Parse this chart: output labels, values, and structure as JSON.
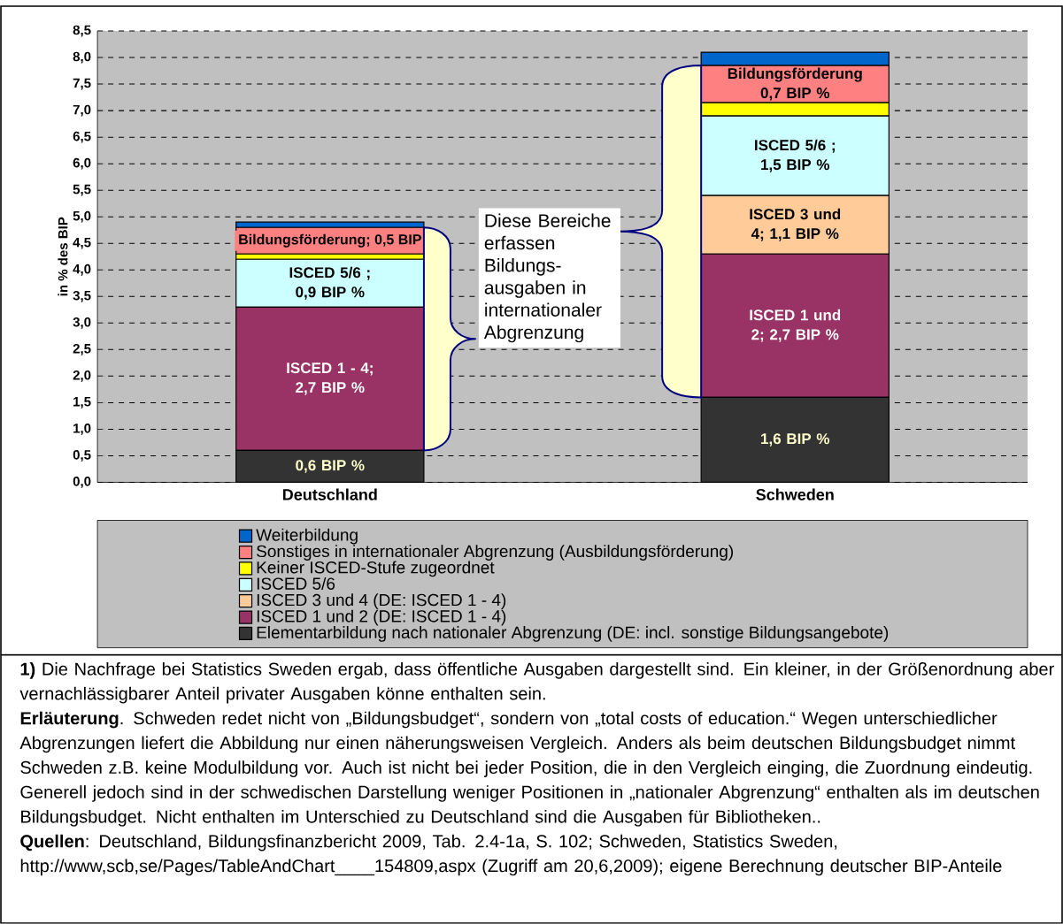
{
  "chart_data": {
    "type": "bar",
    "stacked": true,
    "categories": [
      "Deutschland",
      "Schweden"
    ],
    "ylabel": "in % des BIP",
    "ylim": [
      0,
      8.5
    ],
    "yticks": [
      {
        "value": 0,
        "label": "0,0"
      },
      {
        "value": 0.5,
        "label": "0,5"
      },
      {
        "value": 1,
        "label": "1,0"
      },
      {
        "value": 1.5,
        "label": "1,5"
      },
      {
        "value": 2,
        "label": "2,0"
      },
      {
        "value": 2.5,
        "label": "2,5"
      },
      {
        "value": 3,
        "label": "3,0"
      },
      {
        "value": 3.5,
        "label": "3,5"
      },
      {
        "value": 4,
        "label": "4,0"
      },
      {
        "value": 4.5,
        "label": "4,5"
      },
      {
        "value": 5,
        "label": "5,0"
      },
      {
        "value": 5.5,
        "label": "5,5"
      },
      {
        "value": 6,
        "label": "6,0"
      },
      {
        "value": 6.5,
        "label": "6,5"
      },
      {
        "value": 7,
        "label": "7,0"
      },
      {
        "value": 7.5,
        "label": "7,5"
      },
      {
        "value": 8,
        "label": "8,0"
      },
      {
        "value": 8.5,
        "label": "8,5"
      }
    ],
    "grid": "y",
    "legend": "bottom",
    "series": [
      {
        "name": "Elementarbildung nach nationaler Abgrenzung (DE: incl. sonstige Bildungsangebote)",
        "color": "#333333",
        "values": [
          0.6,
          1.6
        ],
        "value_labels": [
          "0,6 BIP %",
          "1,6 BIP %"
        ]
      },
      {
        "name": "ISCED 1 und 2 (DE: ISCED 1 - 4)",
        "color": "#993366",
        "values": [
          2.7,
          2.7
        ],
        "value_labels": [
          "ISCED 1 - 4; 2,7 BIP %",
          "ISCED 1 und 2; 2,7 BIP %"
        ]
      },
      {
        "name": "ISCED 3 und 4 (DE: ISCED 1 - 4)",
        "color": "#ffcc99",
        "values": [
          0,
          1.1
        ],
        "value_labels": [
          null,
          "ISCED 3 und 4; 1,1 BIP %"
        ]
      },
      {
        "name": "ISCED 5/6",
        "color": "#ccffff",
        "values": [
          0.9,
          1.5
        ],
        "value_labels": [
          "ISCED 5/6 ; 0,9 BIP %",
          "ISCED 5/6 ; 1,5 BIP %"
        ]
      },
      {
        "name": "Keiner ISCED-Stufe zugeordnet",
        "color": "#ffff00",
        "values": [
          0.1,
          0.25
        ],
        "value_labels": [
          null,
          null
        ]
      },
      {
        "name": "Sonstiges in internationaler Abgrenzung (Ausbildungsförderung)",
        "color": "#ff8080",
        "values": [
          0.5,
          0.7
        ],
        "value_labels": [
          "Bildungsförderung; 0,5 BIP",
          "Bildungsförderung 0,7 BIP %"
        ]
      },
      {
        "name": "Weiterbildung",
        "color": "#0066cc",
        "values": [
          0.1,
          0.25
        ],
        "value_labels": [
          null,
          null
        ]
      }
    ],
    "annotations": [
      "Diese Bereiche erfassen Bildungs-ausgaben in internationaler Abgrenzung",
      "**1)** Die Nachfrage bei Statistics Sweden ergab, dass öffentliche Ausgaben dargestellt sind. Ein kleiner, in der Größenordnung aber vernachlässigbarer Anteil privater Ausgaben könne enthalten sein.",
      "**Erläuterung**. Schweden redet nicht von „Bildungsbudget“, sondern von „total costs of  education.“ Wegen unterschiedlicher Abgrenzungen liefert die Abbildung nur einen näherungsweisen Vergleich. Anders als beim deutschen Bildungsbudget nimmt Schweden z.B. keine Modulbildung vor. Auch ist nicht bei jeder Position, die in den Vergleich einging, die Zuordnung eindeutig. Generell jedoch sind in der schwedischen Darstellung weniger Positionen in „nationaler Abgrenzung“ enthalten als im deutschen Bildungsbudget. Nicht enthalten im Unterschied zu Deutschland sind die Ausgaben für Bibliotheken..",
      "**Quellen**: Deutschland, Bildungsfinanzbericht 2009, Tab. 2.4-1a, S. 102; Schweden, Statistics Sweden, http://www,scb,se/Pages/TableAndChart____154809,aspx  (Zugriff am 20,6,2009); eigene Berechnung deutscher BIP-Anteile"
    ]
  }
}
